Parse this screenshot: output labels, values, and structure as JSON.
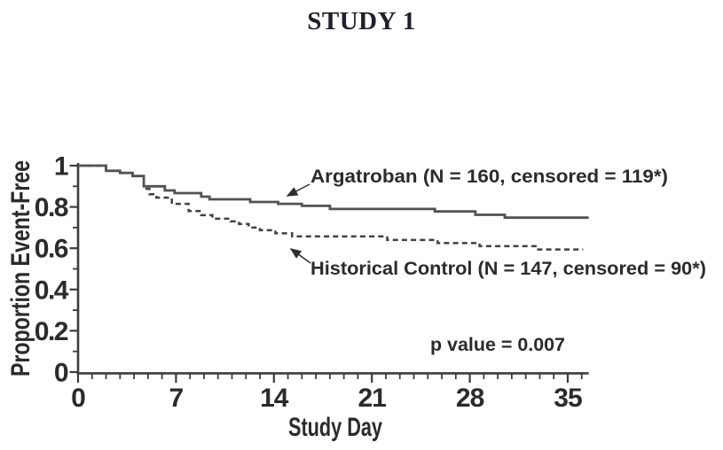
{
  "title": "STUDY 1",
  "chart_data": {
    "type": "line",
    "subtype": "kaplan_meier_step",
    "title": "STUDY 1",
    "xlabel": "Study Day",
    "ylabel": "Proportion Event-Free",
    "xlim": [
      0,
      36.5
    ],
    "ylim": [
      0,
      1
    ],
    "x_ticks": [
      0,
      7,
      14,
      21,
      28,
      35
    ],
    "x_minor_step": 1,
    "y_ticks": [
      0,
      0.2,
      0.4,
      0.6,
      0.8,
      1
    ],
    "y_tick_labels": [
      "0",
      "0.2",
      "0.4",
      "0.6",
      "0.8",
      "1"
    ],
    "y_minor_step": 0.1,
    "grid": false,
    "legend_position": "inline-annotations",
    "axis_color": "#3c3c3c",
    "text_color": "#2b2b2b",
    "p_value": "p value = 0.007",
    "series": [
      {
        "id": "historical-control",
        "name": "Historical Control",
        "label": "Historical Control (N = 147, censored = 90*)",
        "n": 147,
        "censored": 90,
        "line_style": "dashed",
        "color": "#414141",
        "end_day": 36.1,
        "steps": [
          [
            0,
            1.0
          ],
          [
            2.0,
            0.975
          ],
          [
            3.0,
            0.965
          ],
          [
            3.9,
            0.95
          ],
          [
            4.7,
            0.888
          ],
          [
            5.1,
            0.862
          ],
          [
            5.6,
            0.845
          ],
          [
            6.7,
            0.815
          ],
          [
            7.9,
            0.78
          ],
          [
            8.8,
            0.76
          ],
          [
            9.6,
            0.743
          ],
          [
            10.9,
            0.73
          ],
          [
            11.5,
            0.717
          ],
          [
            12.2,
            0.7
          ],
          [
            13.0,
            0.687
          ],
          [
            14.1,
            0.672
          ],
          [
            15.3,
            0.657
          ],
          [
            22.1,
            0.64
          ],
          [
            25.7,
            0.625
          ],
          [
            28.7,
            0.61
          ],
          [
            32.7,
            0.594
          ]
        ]
      },
      {
        "id": "argatroban",
        "name": "Argatroban",
        "label": "Argatroban (N = 160, censored = 119*)",
        "n": 160,
        "censored": 119,
        "line_style": "solid",
        "color": "#525252",
        "end_day": 36.5,
        "steps": [
          [
            0,
            1.0
          ],
          [
            2.0,
            0.975
          ],
          [
            3.0,
            0.965
          ],
          [
            3.9,
            0.95
          ],
          [
            4.7,
            0.9
          ],
          [
            6.2,
            0.88
          ],
          [
            6.9,
            0.867
          ],
          [
            8.8,
            0.85
          ],
          [
            9.4,
            0.837
          ],
          [
            12.3,
            0.824
          ],
          [
            14.3,
            0.815
          ],
          [
            16.0,
            0.805
          ],
          [
            18.0,
            0.79
          ],
          [
            25.5,
            0.778
          ],
          [
            28.4,
            0.762
          ],
          [
            30.5,
            0.748
          ]
        ]
      }
    ],
    "annotations": [
      {
        "id": "argatroban-label",
        "text": "Argatroban (N = 160, censored = 119*)",
        "series": "argatroban",
        "arrow": true
      },
      {
        "id": "historical-control-label",
        "text": "Historical Control (N = 147, censored = 90*)",
        "series": "historical-control",
        "arrow": true
      },
      {
        "id": "p-value-label",
        "text": "p value = 0.007",
        "arrow": false
      }
    ]
  }
}
